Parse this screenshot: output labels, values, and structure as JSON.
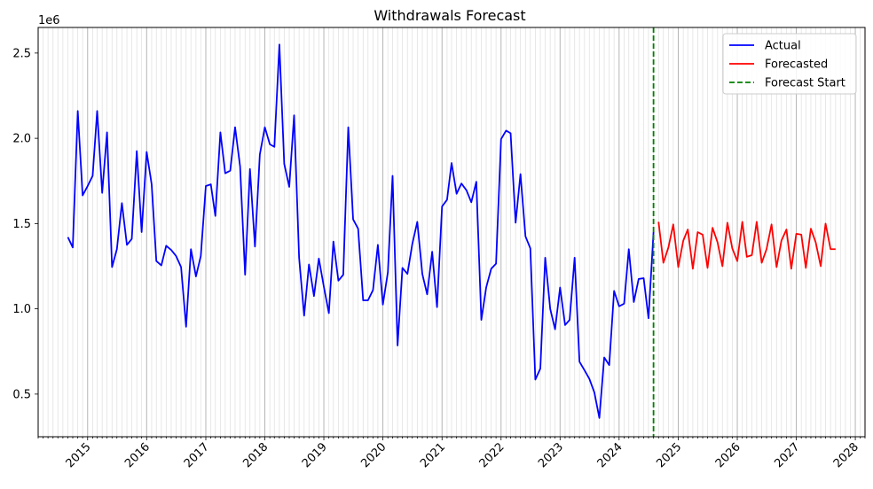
{
  "chart_data": {
    "type": "line",
    "title": "Withdrawals Forecast",
    "xlabel": "",
    "ylabel": "",
    "y_offset_label": "1e6",
    "xlim": [
      "2014-03-01",
      "2028-03-01"
    ],
    "ylim": [
      250000,
      2650000
    ],
    "x_tick_labels": [
      "2015",
      "2016",
      "2017",
      "2018",
      "2019",
      "2020",
      "2021",
      "2022",
      "2023",
      "2024",
      "2025",
      "2026",
      "2027",
      "2028"
    ],
    "y_ticks": [
      500000,
      1000000,
      1500000,
      2000000,
      2500000
    ],
    "y_tick_labels": [
      "0.5",
      "1.0",
      "1.5",
      "2.0",
      "2.5"
    ],
    "grid": "monthly vertical lines",
    "legend": {
      "position": "top-right",
      "entries": [
        "Actual",
        "Forecasted",
        "Forecast Start"
      ]
    },
    "forecast_start": "2024-08-01",
    "series": [
      {
        "name": "Actual",
        "color": "#0000ff",
        "x": [
          "2014-09",
          "2014-10",
          "2014-11",
          "2014-12",
          "2015-01",
          "2015-02",
          "2015-03",
          "2015-04",
          "2015-05",
          "2015-06",
          "2015-07",
          "2015-08",
          "2015-09",
          "2015-10",
          "2015-11",
          "2015-12",
          "2016-01",
          "2016-02",
          "2016-03",
          "2016-04",
          "2016-05",
          "2016-06",
          "2016-07",
          "2016-08",
          "2016-09",
          "2016-10",
          "2016-11",
          "2016-12",
          "2017-01",
          "2017-02",
          "2017-03",
          "2017-04",
          "2017-05",
          "2017-06",
          "2017-07",
          "2017-08",
          "2017-09",
          "2017-10",
          "2017-11",
          "2017-12",
          "2018-01",
          "2018-02",
          "2018-03",
          "2018-04",
          "2018-05",
          "2018-06",
          "2018-07",
          "2018-08",
          "2018-09",
          "2018-10",
          "2018-11",
          "2018-12",
          "2019-01",
          "2019-02",
          "2019-03",
          "2019-04",
          "2019-05",
          "2019-06",
          "2019-07",
          "2019-08",
          "2019-09",
          "2019-10",
          "2019-11",
          "2019-12",
          "2020-01",
          "2020-02",
          "2020-03",
          "2020-04",
          "2020-05",
          "2020-06",
          "2020-07",
          "2020-08",
          "2020-09",
          "2020-10",
          "2020-11",
          "2020-12",
          "2021-01",
          "2021-02",
          "2021-03",
          "2021-04",
          "2021-05",
          "2021-06",
          "2021-07",
          "2021-08",
          "2021-09",
          "2021-10",
          "2021-11",
          "2021-12",
          "2022-01",
          "2022-02",
          "2022-03",
          "2022-04",
          "2022-05",
          "2022-06",
          "2022-07",
          "2022-08",
          "2022-09",
          "2022-10",
          "2022-11",
          "2022-12",
          "2023-01",
          "2023-02",
          "2023-03",
          "2023-04",
          "2023-05",
          "2023-06",
          "2023-07",
          "2023-08",
          "2023-09",
          "2023-10",
          "2023-11",
          "2023-12",
          "2024-01",
          "2024-02",
          "2024-03",
          "2024-04",
          "2024-05",
          "2024-06",
          "2024-07",
          "2024-08"
        ],
        "values": [
          1420000,
          1360000,
          2160000,
          1665000,
          1720000,
          1780000,
          2160000,
          1680000,
          2035000,
          1245000,
          1350000,
          1620000,
          1375000,
          1410000,
          1925000,
          1450000,
          1920000,
          1730000,
          1280000,
          1255000,
          1370000,
          1345000,
          1310000,
          1245000,
          895000,
          1350000,
          1190000,
          1310000,
          1720000,
          1730000,
          1545000,
          2035000,
          1795000,
          1810000,
          2065000,
          1835000,
          1200000,
          1820000,
          1365000,
          1905000,
          2065000,
          1965000,
          1950000,
          2550000,
          1850000,
          1715000,
          2135000,
          1300000,
          960000,
          1260000,
          1075000,
          1295000,
          1130000,
          975000,
          1395000,
          1165000,
          1200000,
          2065000,
          1525000,
          1470000,
          1050000,
          1050000,
          1110000,
          1375000,
          1025000,
          1215000,
          1780000,
          785000,
          1240000,
          1205000,
          1380000,
          1510000,
          1205000,
          1085000,
          1335000,
          1010000,
          1600000,
          1640000,
          1855000,
          1675000,
          1735000,
          1695000,
          1625000,
          1745000,
          935000,
          1125000,
          1235000,
          1265000,
          1995000,
          2045000,
          2030000,
          1505000,
          1790000,
          1425000,
          1355000,
          585000,
          650000,
          1300000,
          1000000,
          880000,
          1125000,
          905000,
          935000,
          1300000,
          690000,
          640000,
          590000,
          510000,
          360000,
          715000,
          670000,
          1105000,
          1015000,
          1030000,
          1350000,
          1040000,
          1175000,
          1180000,
          945000,
          1450000
        ]
      },
      {
        "name": "Forecasted",
        "color": "#ff0000",
        "x": [
          "2024-09",
          "2024-10",
          "2024-11",
          "2024-12",
          "2025-01",
          "2025-02",
          "2025-03",
          "2025-04",
          "2025-05",
          "2025-06",
          "2025-07",
          "2025-08",
          "2025-09",
          "2025-10",
          "2025-11",
          "2025-12",
          "2026-01",
          "2026-02",
          "2026-03",
          "2026-04",
          "2026-05",
          "2026-06",
          "2026-07",
          "2026-08",
          "2026-09",
          "2026-10",
          "2026-11",
          "2026-12",
          "2027-01",
          "2027-02",
          "2027-03",
          "2027-04",
          "2027-05",
          "2027-06",
          "2027-07",
          "2027-08",
          "2027-09"
        ],
        "values": [
          1510000,
          1270000,
          1360000,
          1495000,
          1245000,
          1400000,
          1465000,
          1235000,
          1450000,
          1435000,
          1240000,
          1475000,
          1390000,
          1250000,
          1505000,
          1355000,
          1280000,
          1510000,
          1305000,
          1315000,
          1510000,
          1270000,
          1350000,
          1495000,
          1245000,
          1400000,
          1465000,
          1235000,
          1440000,
          1435000,
          1240000,
          1470000,
          1390000,
          1250000,
          1500000,
          1350000,
          1350000
        ]
      }
    ]
  }
}
